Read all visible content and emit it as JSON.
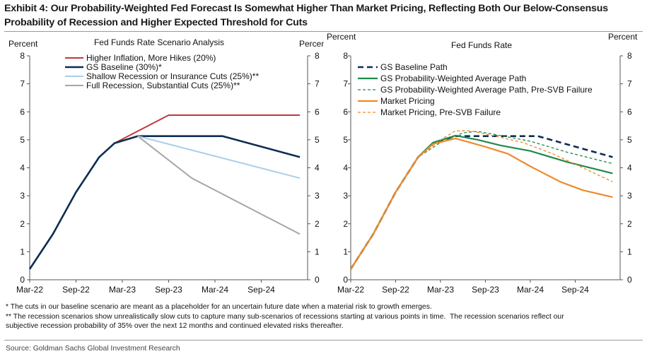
{
  "header": {
    "title_line1": "Exhibit 4: Our Probability-Weighted Fed Forecast Is Somewhat Higher Than Market Pricing, Reflecting Both Our Below-Consensus",
    "title_line2": "Probability of Recession and Higher Expected Threshold for Cuts"
  },
  "chart_data": [
    {
      "type": "line",
      "title": "Fed Funds Rate Scenario Analysis",
      "ylabel_left": "Percent",
      "ylabel_right": "Percent",
      "ylim": [
        0,
        8
      ],
      "yticks": [
        "0",
        "1",
        "2",
        "3",
        "4",
        "5",
        "6",
        "7",
        "8"
      ],
      "xlim": [
        0,
        36
      ],
      "xticks": [
        {
          "x": 0,
          "label": "Mar-22"
        },
        {
          "x": 6,
          "label": "Sep-22"
        },
        {
          "x": 12,
          "label": "Mar-23"
        },
        {
          "x": 18,
          "label": "Sep-23"
        },
        {
          "x": 24,
          "label": "Mar-24"
        },
        {
          "x": 30,
          "label": "Sep-24"
        }
      ],
      "legend_position": "top-left",
      "series": [
        {
          "name": "Higher Inflation, More Hikes (20%)",
          "color": "#c0393b",
          "dash": "",
          "width": 2,
          "points": [
            [
              11,
              4.88
            ],
            [
              18,
              5.88
            ],
            [
              35,
              5.88
            ]
          ]
        },
        {
          "name": "GS Baseline (30%)*",
          "color": "#0d2d52",
          "dash": "",
          "width": 2.6,
          "points": [
            [
              0,
              0.38
            ],
            [
              3,
              1.63
            ],
            [
              6,
              3.13
            ],
            [
              9,
              4.38
            ],
            [
              11,
              4.88
            ],
            [
              14,
              5.13
            ],
            [
              25,
              5.13
            ],
            [
              35,
              4.38
            ]
          ]
        },
        {
          "name": "Shallow Recession or Insurance Cuts (25%)**",
          "color": "#a9cfe6",
          "dash": "",
          "width": 2,
          "points": [
            [
              14,
              5.13
            ],
            [
              35,
              3.63
            ]
          ]
        },
        {
          "name": "Full Recession, Substantial Cuts (25%)**",
          "color": "#a6a6a6",
          "dash": "",
          "width": 2,
          "points": [
            [
              14,
              5.13
            ],
            [
              21,
              3.63
            ],
            [
              35,
              1.63
            ]
          ]
        }
      ]
    },
    {
      "type": "line",
      "title": "Fed Funds Rate",
      "ylabel_left": "Percent",
      "ylabel_right": "Percent",
      "ylim": [
        0,
        8
      ],
      "yticks": [
        "0",
        "1",
        "2",
        "3",
        "4",
        "5",
        "6",
        "7",
        "8"
      ],
      "xlim": [
        0,
        36
      ],
      "xticks": [
        {
          "x": 0,
          "label": "Mar-22"
        },
        {
          "x": 6,
          "label": "Sep-22"
        },
        {
          "x": 12,
          "label": "Mar-23"
        },
        {
          "x": 18,
          "label": "Sep-23"
        },
        {
          "x": 24,
          "label": "Mar-24"
        },
        {
          "x": 30,
          "label": "Sep-24"
        }
      ],
      "legend_position": "top-left",
      "series": [
        {
          "name": "GS Baseline Path",
          "color": "#0d2d52",
          "dash": "8,5",
          "width": 2.6,
          "points": [
            [
              0,
              0.38
            ],
            [
              3,
              1.63
            ],
            [
              6,
              3.13
            ],
            [
              9,
              4.38
            ],
            [
              11,
              4.88
            ],
            [
              14,
              5.13
            ],
            [
              25,
              5.13
            ],
            [
              35,
              4.38
            ]
          ]
        },
        {
          "name": "GS Probability-Weighted Average Path",
          "color": "#1f8a4c",
          "dash": "",
          "width": 2.2,
          "points": [
            [
              0,
              0.38
            ],
            [
              3,
              1.63
            ],
            [
              6,
              3.13
            ],
            [
              9,
              4.38
            ],
            [
              11,
              4.9
            ],
            [
              14,
              5.15
            ],
            [
              17,
              5.0
            ],
            [
              20,
              4.8
            ],
            [
              24,
              4.6
            ],
            [
              29,
              4.2
            ],
            [
              35,
              3.8
            ]
          ]
        },
        {
          "name": "GS Probability-Weighted Average Path, Pre-SVB Failure",
          "color": "#1f8a4c",
          "dash": "4,3",
          "width": 1.3,
          "points": [
            [
              0,
              0.38
            ],
            [
              3,
              1.63
            ],
            [
              6,
              3.13
            ],
            [
              9,
              4.38
            ],
            [
              12,
              4.9
            ],
            [
              15,
              5.25
            ],
            [
              17,
              5.3
            ],
            [
              20,
              5.15
            ],
            [
              24,
              4.95
            ],
            [
              29,
              4.55
            ],
            [
              35,
              4.15
            ]
          ]
        },
        {
          "name": "Market Pricing",
          "color": "#ee8a2d",
          "dash": "",
          "width": 2.2,
          "points": [
            [
              0,
              0.38
            ],
            [
              3,
              1.63
            ],
            [
              6,
              3.13
            ],
            [
              9,
              4.38
            ],
            [
              11,
              4.85
            ],
            [
              14,
              5.05
            ],
            [
              18,
              4.75
            ],
            [
              21,
              4.5
            ],
            [
              24,
              4.05
            ],
            [
              28,
              3.5
            ],
            [
              31,
              3.2
            ],
            [
              35,
              2.95
            ]
          ]
        },
        {
          "name": "Market Pricing, Pre-SVB Failure",
          "color": "#ee8a2d",
          "dash": "4,3",
          "width": 1.3,
          "points": [
            [
              0,
              0.38
            ],
            [
              3,
              1.63
            ],
            [
              6,
              3.13
            ],
            [
              9,
              4.38
            ],
            [
              12,
              5.0
            ],
            [
              14,
              5.32
            ],
            [
              16,
              5.32
            ],
            [
              19,
              5.15
            ],
            [
              23,
              4.9
            ],
            [
              27,
              4.5
            ],
            [
              31,
              4.0
            ],
            [
              35,
              3.5
            ]
          ]
        }
      ]
    }
  ],
  "notes": {
    "note1": "* The cuts in our baseline scenario are meant as a placeholder for an uncertain future date when a material risk to growth emerges.",
    "note2": "** The recession scenarios show unrealistically slow cuts to capture many sub-scenarios of recessions starting at various points in time.  The recession scenarios reflect our",
    "note3": "subjective recession probability of 35% over the next 12 months and continued elevated risks thereafter."
  },
  "source": "Source: Goldman Sachs Global Investment Research"
}
